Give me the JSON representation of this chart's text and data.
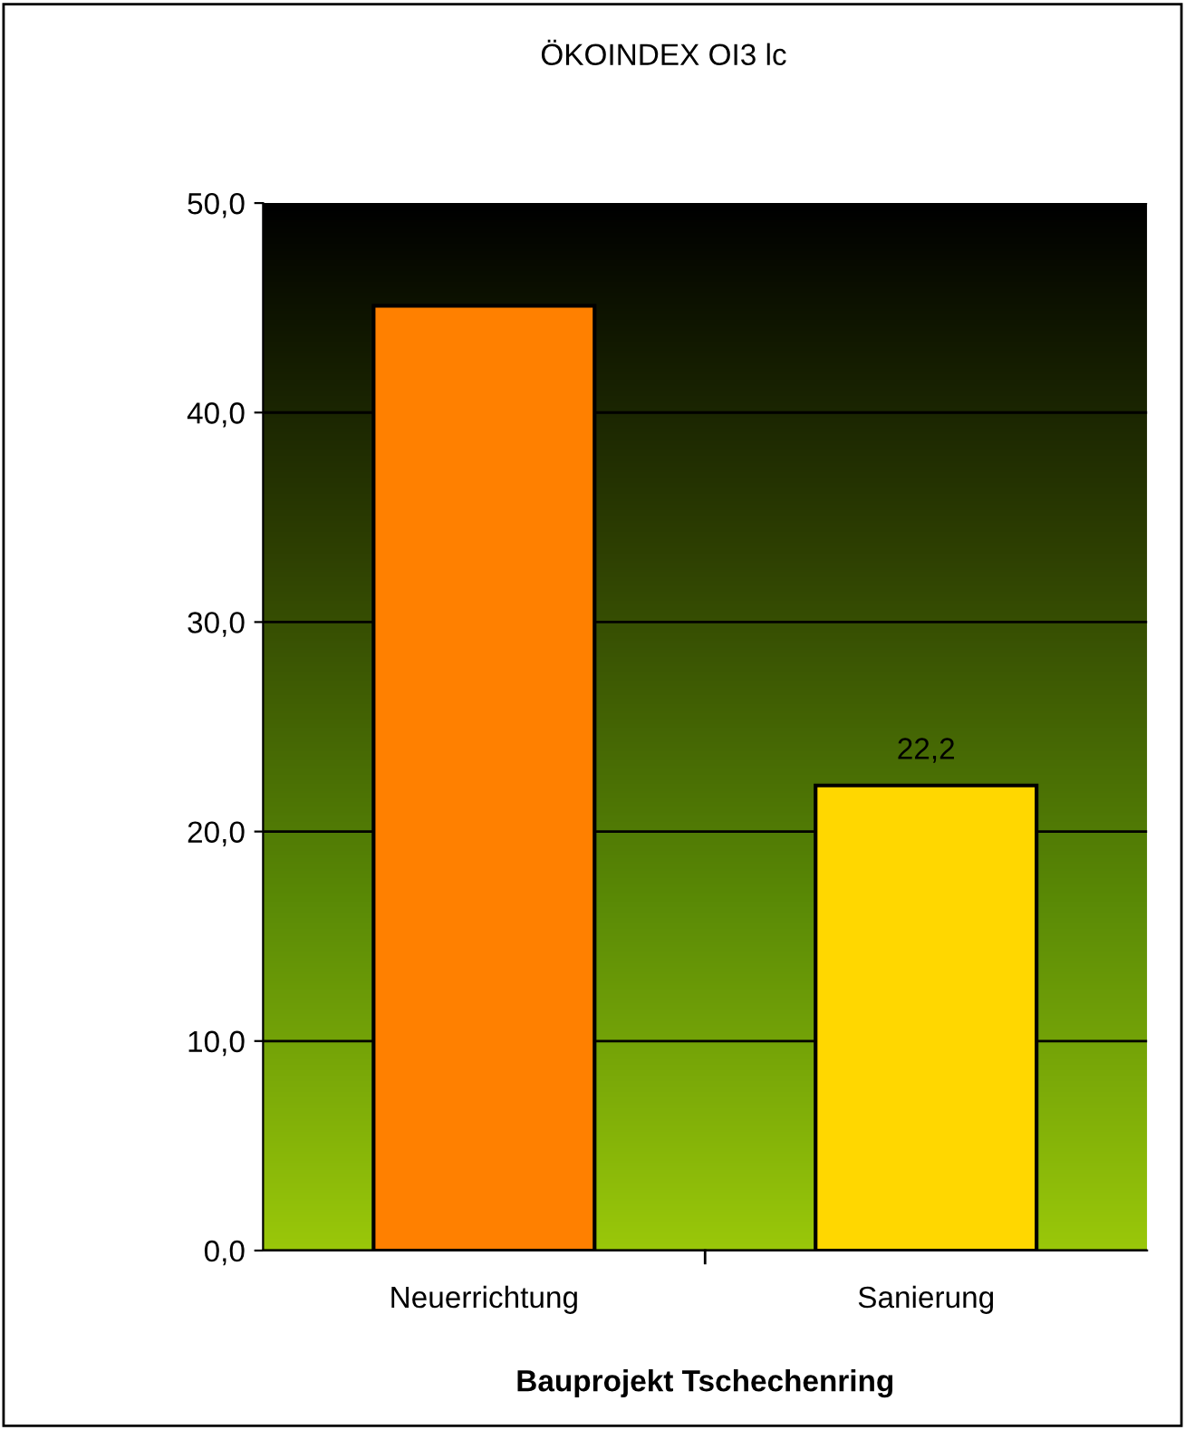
{
  "chart_data": {
    "type": "bar",
    "title": "ÖKOINDEX OI3 lc",
    "xlabel": "Bauprojekt Tschechenring",
    "categories": [
      "Neuerrichtung",
      "Sanierung"
    ],
    "values": [
      45.1,
      22.2
    ],
    "colors": [
      "#ff8000",
      "#ffd700"
    ],
    "value_labels": [
      null,
      "22,2"
    ],
    "ylim": [
      0,
      50
    ],
    "yticks": [
      {
        "value": 0,
        "label": "0,0"
      },
      {
        "value": 10,
        "label": "10,0"
      },
      {
        "value": 20,
        "label": "20,0"
      },
      {
        "value": 30,
        "label": "30,0"
      },
      {
        "value": 40,
        "label": "40,0"
      },
      {
        "value": 50,
        "label": "50,0"
      }
    ],
    "grid": "y",
    "legend": false
  }
}
